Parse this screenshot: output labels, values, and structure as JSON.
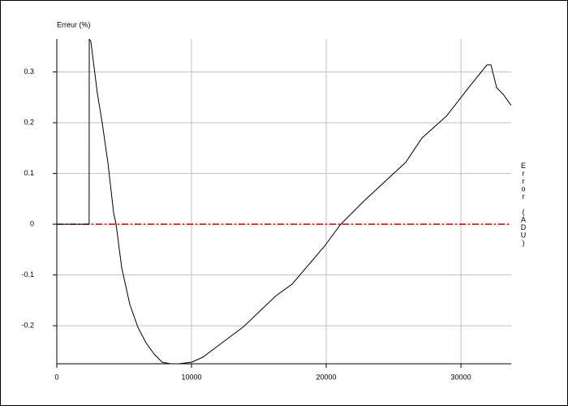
{
  "chart_data": {
    "type": "line",
    "y_label": "Erreur (%)",
    "y2_label": "Error (ADU)",
    "x": [
      0,
      2400,
      2410,
      2530,
      3010,
      3370,
      3800,
      4220,
      4400,
      4820,
      5420,
      6020,
      6630,
      7230,
      7830,
      8430,
      9040,
      10000,
      10840,
      12050,
      13860,
      16270,
      17470,
      19880,
      21080,
      22890,
      25900,
      27110,
      28920,
      30720,
      31930,
      32230,
      32650,
      33130,
      33730
    ],
    "series": [
      {
        "color": "#000000",
        "values": [
          0,
          0,
          0.365,
          0.36,
          0.258,
          0.2,
          0.12,
          0.022,
          0,
          -0.086,
          -0.158,
          -0.203,
          -0.234,
          -0.256,
          -0.272,
          -0.275,
          -0.275,
          -0.272,
          -0.262,
          -0.238,
          -0.202,
          -0.141,
          -0.118,
          -0.043,
          0,
          0.048,
          0.122,
          0.17,
          0.213,
          0.274,
          0.314,
          0.314,
          0.269,
          0.256,
          0.234
        ]
      }
    ],
    "reference_line": {
      "value": 0,
      "color": "#cc0000"
    },
    "xlim": [
      0,
      33730
    ],
    "ylim": [
      -0.275,
      0.365
    ],
    "xticks": [
      0,
      10000,
      20000,
      30000
    ],
    "yticks": [
      -0.2,
      -0.1,
      0,
      0.1,
      0.2,
      0.3
    ],
    "grid": true
  }
}
